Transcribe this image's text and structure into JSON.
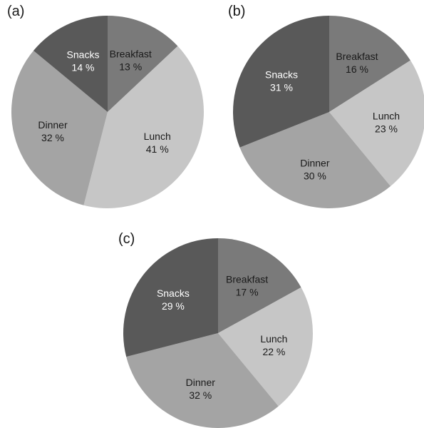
{
  "chart_data": [
    {
      "type": "pie",
      "panel_label": "(a)",
      "categories": [
        "Breakfast",
        "Lunch",
        "Dinner",
        "Snacks"
      ],
      "values": [
        13,
        41,
        32,
        14
      ],
      "value_labels": [
        "13 %",
        "41 %",
        "32 %",
        "14 %"
      ],
      "colors": [
        "#7a7a7a",
        "#c6c6c6",
        "#a4a4a4",
        "#595959"
      ],
      "label_colors": [
        "#1a1a1a",
        "#1a1a1a",
        "#1a1a1a",
        "#ffffff"
      ]
    },
    {
      "type": "pie",
      "panel_label": "(b)",
      "categories": [
        "Breakfast",
        "Lunch",
        "Dinner",
        "Snacks"
      ],
      "values": [
        16,
        23,
        30,
        31
      ],
      "value_labels": [
        "16 %",
        "23 %",
        "30 %",
        "31 %"
      ],
      "colors": [
        "#7a7a7a",
        "#c6c6c6",
        "#a4a4a4",
        "#595959"
      ],
      "label_colors": [
        "#1a1a1a",
        "#1a1a1a",
        "#1a1a1a",
        "#ffffff"
      ]
    },
    {
      "type": "pie",
      "panel_label": "(c)",
      "categories": [
        "Breakfast",
        "Lunch",
        "Dinner",
        "Snacks"
      ],
      "values": [
        17,
        22,
        32,
        29
      ],
      "value_labels": [
        "17 %",
        "22 %",
        "32 %",
        "29 %"
      ],
      "colors": [
        "#7a7a7a",
        "#c6c6c6",
        "#a4a4a4",
        "#595959"
      ],
      "label_colors": [
        "#1a1a1a",
        "#1a1a1a",
        "#1a1a1a",
        "#ffffff"
      ]
    }
  ]
}
